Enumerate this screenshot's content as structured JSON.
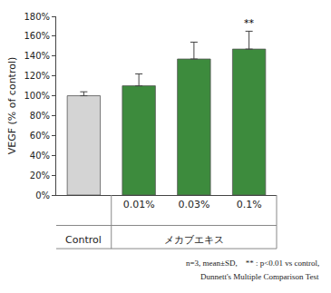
{
  "chart_data": {
    "type": "bar",
    "y_label": "VEGF (% of control)",
    "categories": [
      "Control",
      "0.01%",
      "0.03%",
      "0.1%"
    ],
    "values": [
      100,
      110,
      137,
      147
    ],
    "errors": [
      4,
      12,
      17,
      18
    ],
    "colors": [
      "#d4d4d4",
      "#3d8b3d",
      "#3d8b3d",
      "#3d8b3d"
    ],
    "group": {
      "label": "メカブエキス",
      "categories": [
        "0.01%",
        "0.03%",
        "0.1%"
      ]
    },
    "annotations": [
      {
        "text": "**",
        "category": "0.1%"
      }
    ],
    "notes": [
      "n=3, mean±SD,    ** : p<0.01 vs control,",
      "Dunnett's Multiple Comparison Test"
    ],
    "ylim": [
      0,
      180
    ],
    "yticks": [
      {
        "value": 0,
        "label": "0%"
      },
      {
        "value": 20,
        "label": "20%"
      },
      {
        "value": 40,
        "label": "40%"
      },
      {
        "value": 60,
        "label": "60%"
      },
      {
        "value": 80,
        "label": "80%"
      },
      {
        "value": 100,
        "label": "100%"
      },
      {
        "value": 120,
        "label": "120%"
      },
      {
        "value": 140,
        "label": "140%"
      },
      {
        "value": 160,
        "label": "160%"
      },
      {
        "value": 180,
        "label": "180%"
      }
    ],
    "grid": false
  }
}
